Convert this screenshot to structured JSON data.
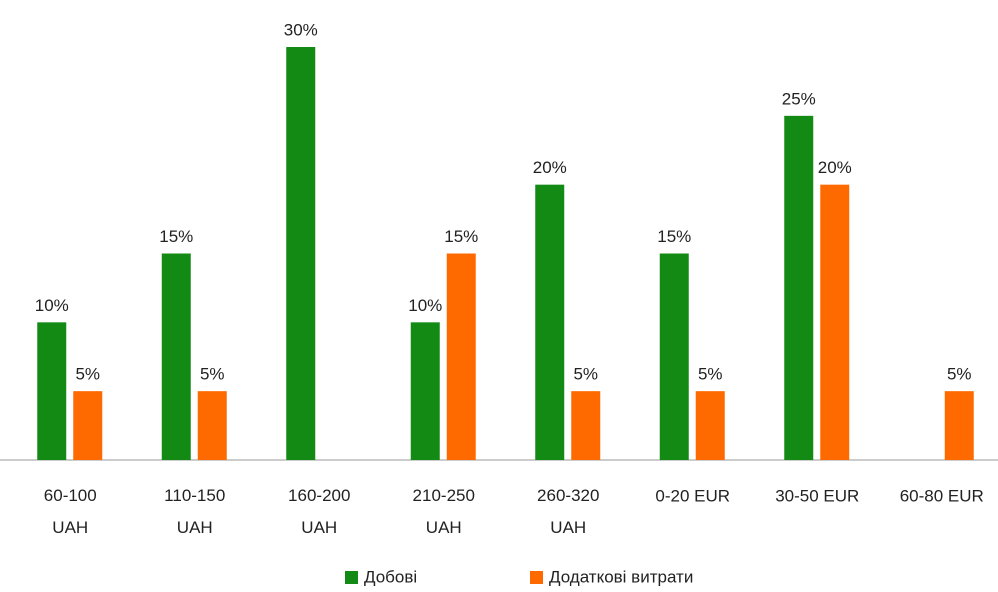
{
  "chart_data": {
    "type": "bar",
    "categories": [
      "60-100\nUAH",
      "110-150\nUAH",
      "160-200\nUAH",
      "210-250\nUAH",
      "260-320\nUAH",
      "0-20 EUR",
      "30-50 EUR",
      "60-80 EUR"
    ],
    "series": [
      {
        "name": "Добові",
        "color": "#138a13",
        "values": [
          10,
          15,
          30,
          10,
          20,
          15,
          25,
          null
        ],
        "value_labels": [
          "10%",
          "15%",
          "30%",
          "10%",
          "20%",
          "15%",
          "25%",
          null
        ]
      },
      {
        "name": "Додаткові витрати",
        "color": "#ff6a00",
        "values": [
          5,
          5,
          null,
          15,
          5,
          5,
          20,
          5
        ],
        "value_labels": [
          "5%",
          "5%",
          null,
          "15%",
          "5%",
          "5%",
          "20%",
          "5%"
        ]
      }
    ],
    "ylim": [
      0,
      30
    ],
    "legend": "bottom"
  }
}
